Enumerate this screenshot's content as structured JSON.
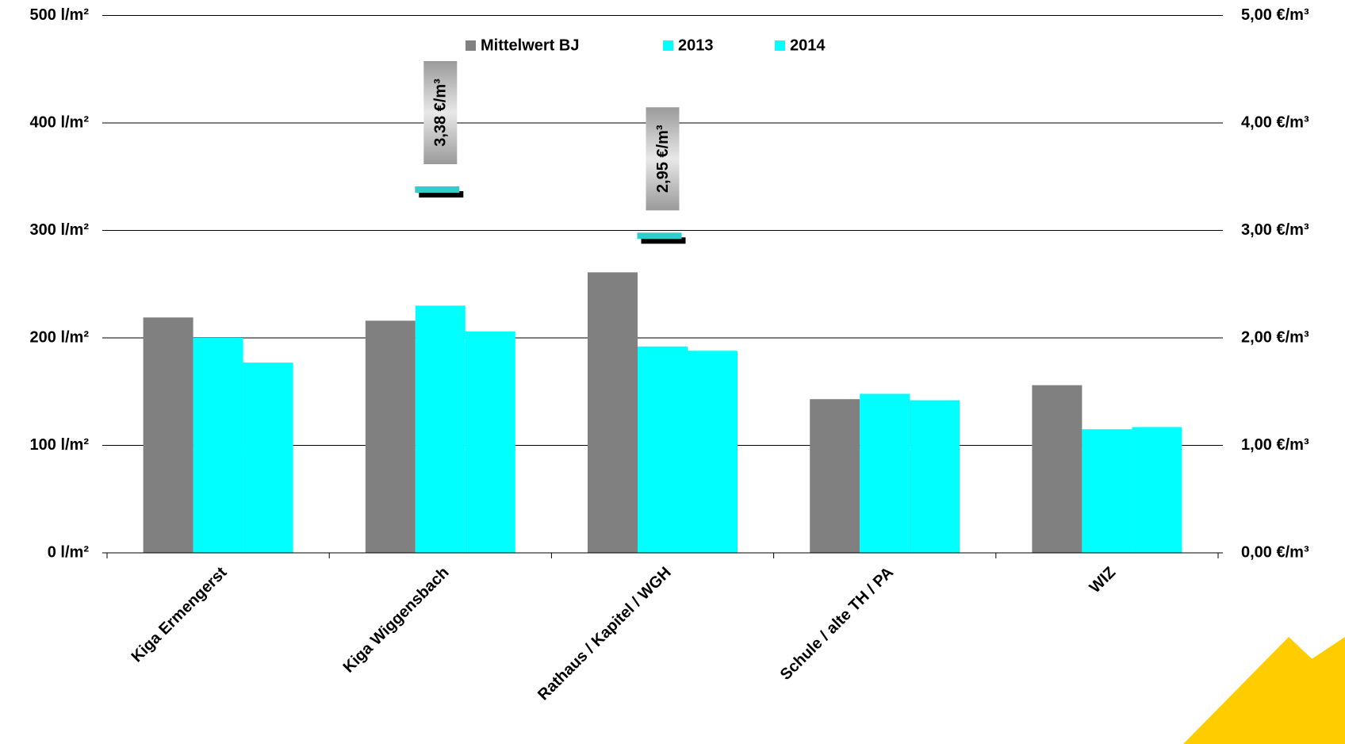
{
  "chart_data": {
    "type": "bar",
    "categories": [
      "Kiga Ermengerst",
      "Kiga Wiggensbach",
      "Rathaus / Kapitel / WGH",
      "Schule / alte TH / PA",
      "WIZ"
    ],
    "series": [
      {
        "name": "Mittelwert BJ",
        "color": "#808080",
        "values": [
          219,
          216,
          261,
          143,
          156
        ]
      },
      {
        "name": "2013",
        "color": "#00ffff",
        "values": [
          200,
          230,
          192,
          148,
          115
        ]
      },
      {
        "name": "2014",
        "color": "#00ffff",
        "values": [
          177,
          206,
          188,
          142,
          117
        ]
      },
      {
        "color": "#33cccc",
        "axis": "y2",
        "values": [
          null,
          3.38,
          2.95,
          null,
          null
        ],
        "value_labels": [
          null,
          "3,38 €/m³",
          "2,95 €/m³",
          null,
          null
        ]
      }
    ],
    "ylim": [
      0,
      500
    ],
    "yticks": [
      {
        "value": 0,
        "label": "0 l/m²"
      },
      {
        "value": 100,
        "label": "100 l/m²"
      },
      {
        "value": 200,
        "label": "200 l/m²"
      },
      {
        "value": 300,
        "label": "300 l/m²"
      },
      {
        "value": 400,
        "label": "400 l/m²"
      },
      {
        "value": 500,
        "label": "500 l/m²"
      }
    ],
    "y2lim": [
      0,
      5
    ],
    "y2ticks": [
      {
        "value": 0,
        "label": "0,00 €/m³"
      },
      {
        "value": 1,
        "label": "1,00 €/m³"
      },
      {
        "value": 2,
        "label": "2,00 €/m³"
      },
      {
        "value": 3,
        "label": "3,00 €/m³"
      },
      {
        "value": 4,
        "label": "4,00 €/m³"
      },
      {
        "value": 5,
        "label": "5,00 €/m³"
      }
    ],
    "grid": true
  }
}
